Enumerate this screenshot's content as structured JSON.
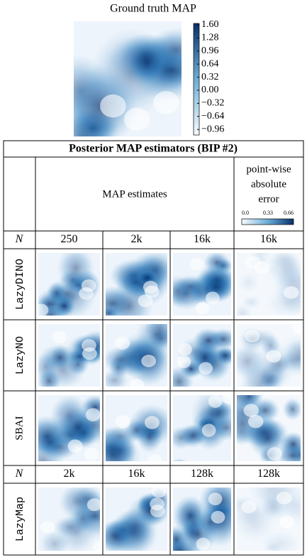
{
  "top": {
    "title": "Ground truth MAP",
    "colorbar_ticks": [
      "1.60",
      "1.28",
      "0.96",
      "0.64",
      "0.32",
      "0.00",
      "−0.32",
      "−0.64",
      "−0.96"
    ]
  },
  "table": {
    "title": "Posterior MAP estimators (BIP #2)",
    "header": {
      "estimates": "MAP estimates",
      "error": [
        "point-wise",
        "absolute",
        "error"
      ],
      "error_ticks": [
        "0.0",
        "0.33",
        "0.66"
      ]
    },
    "rows": [
      {
        "label": "N",
        "values": [
          "250",
          "2k",
          "16k",
          "16k"
        ]
      },
      {
        "label": "LazyDINO"
      },
      {
        "label": "LazyNO"
      },
      {
        "label": "SBAI"
      },
      {
        "label": "N",
        "values": [
          "2k",
          "16k",
          "128k",
          "128k"
        ]
      },
      {
        "label": "LazyMap"
      }
    ]
  }
}
